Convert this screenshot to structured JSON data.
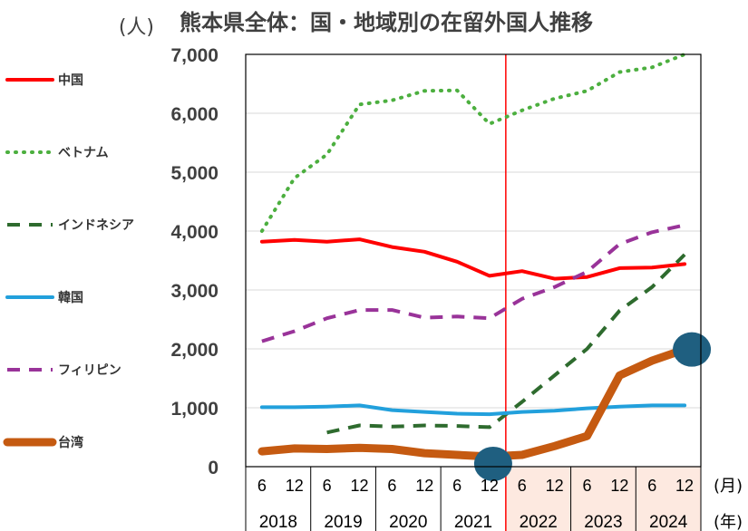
{
  "chart_data": {
    "type": "line",
    "title": "熊本県全体：国・地域別の在留外国人推移",
    "ylabel": "(人)",
    "ylim": [
      0,
      7000
    ],
    "yticks": [
      "0",
      "1,000",
      "2,000",
      "3,000",
      "4,000",
      "5,000",
      "6,000",
      "7,000"
    ],
    "grid": true,
    "legend_position": "left",
    "x_months": [
      "6",
      "12",
      "6",
      "12",
      "6",
      "12",
      "6",
      "12",
      "6",
      "12",
      "6",
      "12",
      "6",
      "12"
    ],
    "x_years": [
      "2018",
      "2019",
      "2020",
      "2021",
      "2022",
      "2023",
      "2024"
    ],
    "x_month_unit": "(月)",
    "x_year_unit": "(年)",
    "highlight_from_index": 4,
    "highlight_color": "#fde9e0",
    "series": [
      {
        "name": "中国",
        "color": "#ff0000",
        "dash": "solid",
        "width": 4,
        "values": [
          3820,
          3850,
          3820,
          3860,
          3730,
          3650,
          3480,
          3240,
          3320,
          3190,
          3220,
          3370,
          3380,
          3440
        ]
      },
      {
        "name": "ベトナム",
        "color": "#4caf3f",
        "dash": "dotted",
        "width": 4,
        "values": [
          4000,
          4900,
          5300,
          6150,
          6220,
          6380,
          6390,
          5820,
          6050,
          6250,
          6380,
          6700,
          6780,
          7000
        ]
      },
      {
        "name": "インドネシア",
        "color": "#2e6b2e",
        "dash": "dashed",
        "width": 4,
        "values": [
          null,
          null,
          580,
          700,
          680,
          700,
          690,
          670,
          1100,
          1550,
          2000,
          2650,
          3050,
          3600
        ]
      },
      {
        "name": "韓国",
        "color": "#22a0dc",
        "dash": "solid",
        "width": 4,
        "values": [
          1010,
          1010,
          1020,
          1040,
          960,
          930,
          900,
          890,
          930,
          950,
          990,
          1020,
          1040,
          1040
        ]
      },
      {
        "name": "フィリピン",
        "color": "#993399",
        "dash": "dashed",
        "width": 4,
        "values": [
          2130,
          2300,
          2520,
          2660,
          2660,
          2530,
          2550,
          2520,
          2850,
          3050,
          3310,
          3780,
          3980,
          4100
        ]
      },
      {
        "name": "台湾",
        "color": "#c55a11",
        "dash": "solid",
        "width": 9,
        "values": [
          260,
          310,
          300,
          320,
          300,
          230,
          200,
          170,
          200,
          350,
          520,
          1550,
          1800,
          1990
        ]
      }
    ]
  }
}
